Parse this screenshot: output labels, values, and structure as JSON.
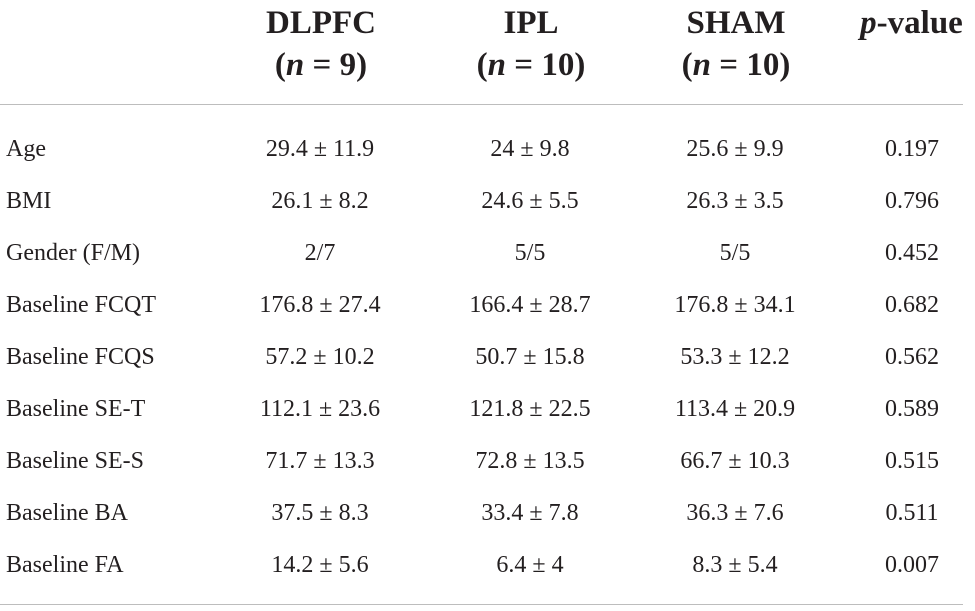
{
  "header": {
    "row_label": "",
    "groups": [
      {
        "name": "DLPFC",
        "n_label": "n",
        "n_value": "= 9"
      },
      {
        "name": "IPL",
        "n_label": "n",
        "n_value": "= 10"
      },
      {
        "name": "SHAM",
        "n_label": "n",
        "n_value": "= 10"
      }
    ],
    "pvalue": {
      "prefix": "p",
      "suffix": "-value"
    }
  },
  "rows": [
    {
      "label": "Age",
      "dlpfc": "29.4 ± 11.9",
      "ipl": "24 ± 9.8",
      "sham": "25.6 ± 9.9",
      "p": "0.197"
    },
    {
      "label": "BMI",
      "dlpfc": "26.1 ± 8.2",
      "ipl": "24.6 ± 5.5",
      "sham": "26.3 ± 3.5",
      "p": "0.796"
    },
    {
      "label": "Gender (F/M)",
      "dlpfc": "2/7",
      "ipl": "5/5",
      "sham": "5/5",
      "p": "0.452"
    },
    {
      "label": "Baseline FCQT",
      "dlpfc": "176.8 ± 27.4",
      "ipl": "166.4 ± 28.7",
      "sham": "176.8 ± 34.1",
      "p": "0.682"
    },
    {
      "label": "Baseline FCQS",
      "dlpfc": "57.2 ± 10.2",
      "ipl": "50.7 ± 15.8",
      "sham": "53.3 ± 12.2",
      "p": "0.562"
    },
    {
      "label": "Baseline SE-T",
      "dlpfc": "112.1 ± 23.6",
      "ipl": "121.8 ± 22.5",
      "sham": "113.4 ± 20.9",
      "p": "0.589"
    },
    {
      "label": "Baseline SE-S",
      "dlpfc": "71.7 ± 13.3",
      "ipl": "72.8 ± 13.5",
      "sham": "66.7 ± 10.3",
      "p": "0.515"
    },
    {
      "label": "Baseline BA",
      "dlpfc": "37.5 ± 8.3",
      "ipl": "33.4 ± 7.8",
      "sham": "36.3 ± 7.6",
      "p": "0.511"
    },
    {
      "label": "Baseline FA",
      "dlpfc": "14.2 ± 5.6",
      "ipl": "6.4 ± 4",
      "sham": "8.3 ± 5.4",
      "p": "0.007"
    }
  ],
  "colors": {
    "text": "#231f20",
    "rule": "#bdbdbd",
    "background": "#ffffff"
  }
}
